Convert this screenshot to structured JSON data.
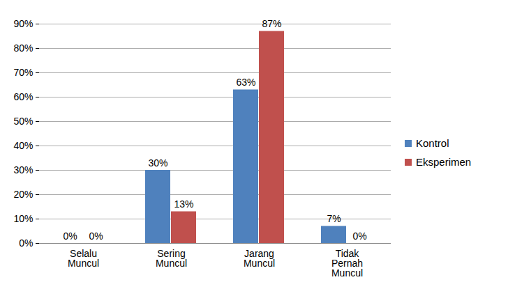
{
  "chart_data": {
    "type": "bar",
    "categories": [
      "Selalu Muncul",
      "Sering Muncul",
      "Jarang Muncul",
      "Tidak Pernah Muncul"
    ],
    "series": [
      {
        "name": "Kontrol",
        "color": "#4f81bd",
        "values": [
          0,
          30,
          63,
          7
        ],
        "value_labels": [
          "0%",
          "30%",
          "63%",
          "7%"
        ]
      },
      {
        "name": "Eksperimen",
        "color": "#c0504d",
        "values": [
          0,
          13,
          87,
          0
        ],
        "value_labels": [
          "0%",
          "13%",
          "87%",
          "0%"
        ]
      }
    ],
    "ylim": [
      0,
      90
    ],
    "yticks": [
      {
        "value": 0,
        "label": "0%"
      },
      {
        "value": 10,
        "label": "10%"
      },
      {
        "value": 20,
        "label": "20%"
      },
      {
        "value": 30,
        "label": "30%"
      },
      {
        "value": 40,
        "label": "40%"
      },
      {
        "value": 50,
        "label": "50%"
      },
      {
        "value": 60,
        "label": "60%"
      },
      {
        "value": 70,
        "label": "70%"
      },
      {
        "value": 80,
        "label": "80%"
      },
      {
        "value": 90,
        "label": "90%"
      }
    ],
    "grid": true,
    "legend": "right",
    "data_labels": true
  }
}
